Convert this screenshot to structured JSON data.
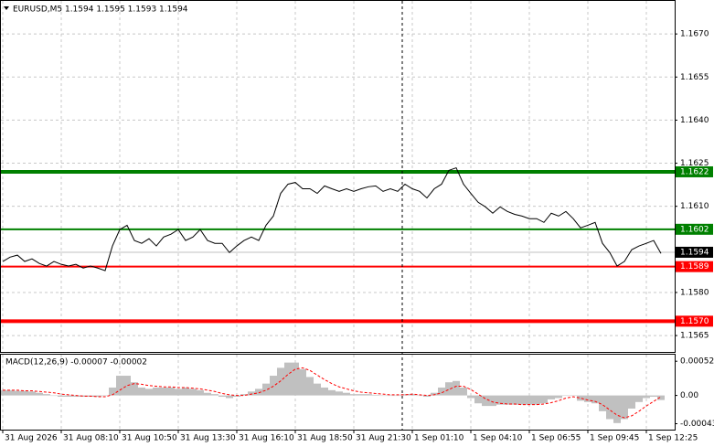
{
  "chart_data": [
    {
      "type": "line",
      "title": "EURUSD,M5  1.1594 1.1595 1.1593 1.1594",
      "categories": [
        "31 Aug 2026",
        null,
        null,
        null,
        null,
        null,
        null,
        null,
        "31 Aug 08:10",
        null,
        null,
        null,
        null,
        null,
        null,
        null,
        "31 Aug 10:50",
        null,
        null,
        null,
        null,
        null,
        null,
        null,
        "31 Aug 13:30",
        null,
        null,
        null,
        null,
        null,
        null,
        null,
        "31 Aug 16:10",
        null,
        null,
        null,
        null,
        null,
        null,
        null,
        "31 Aug 18:50",
        null,
        null,
        null,
        null,
        null,
        null,
        null,
        "31 Aug 21:30",
        null,
        null,
        null,
        null,
        null,
        null,
        null,
        "1 Sep 01:10",
        null,
        null,
        null,
        null,
        null,
        null,
        null,
        "1 Sep 04:10",
        null,
        null,
        null,
        null,
        null,
        null,
        null,
        "1 Sep 06:55",
        null,
        null,
        null,
        null,
        null,
        null,
        null,
        "1 Sep 09:45",
        null,
        null,
        null,
        null,
        null,
        null,
        null,
        "1 Sep 12:25",
        null,
        null
      ],
      "series": [
        {
          "color": "#000000",
          "values": [
            1.15908,
            1.15923,
            1.1593,
            1.15908,
            1.15917,
            1.15901,
            1.15892,
            1.15908,
            1.15898,
            1.15892,
            1.15898,
            1.15885,
            1.15892,
            1.15885,
            1.15876,
            1.15962,
            1.16019,
            1.16034,
            1.15981,
            1.15971,
            1.15987,
            1.15962,
            1.15993,
            1.16003,
            1.16019,
            1.15981,
            1.15993,
            1.16019,
            1.15981,
            1.15971,
            1.15971,
            1.15939,
            1.15962,
            1.15981,
            1.15993,
            1.15981,
            1.16034,
            1.16066,
            1.16145,
            1.16177,
            1.16183,
            1.16161,
            1.16161,
            1.16145,
            1.16171,
            1.16161,
            1.16152,
            1.16161,
            1.16152,
            1.16161,
            1.16168,
            1.16171,
            1.16152,
            1.16161,
            1.16152,
            1.16177,
            1.16161,
            1.16152,
            1.16129,
            1.16161,
            1.16177,
            1.16225,
            1.16234,
            1.16177,
            1.16145,
            1.16114,
            1.16098,
            1.16076,
            1.16098,
            1.16082,
            1.16072,
            1.16066,
            1.16057,
            1.16057,
            1.16044,
            1.16076,
            1.16066,
            1.16082,
            1.16057,
            1.16025,
            1.16034,
            1.16044,
            1.15971,
            1.15939,
            1.15892,
            1.15908,
            1.15949,
            1.15962,
            1.15971,
            1.15981,
            1.15936
          ]
        }
      ],
      "ylim": [
        1.15593,
        1.16815
      ],
      "yticks": [
        {
          "value": 1.167,
          "label": "1.1670"
        },
        {
          "value": 1.1655,
          "label": "1.1655"
        },
        {
          "value": 1.164,
          "label": "1.1640"
        },
        {
          "value": 1.1625,
          "label": "1.1625"
        },
        {
          "value": 1.161,
          "label": "1.1610"
        },
        {
          "value": 1.158,
          "label": "1.1580"
        },
        {
          "value": 1.1565,
          "label": "1.1565"
        }
      ],
      "grid": true,
      "levels": [
        {
          "value": 1.1622,
          "label": "1.1622",
          "color": "#008000",
          "width": 4
        },
        {
          "value": 1.1602,
          "label": "1.1602",
          "color": "#008000",
          "width": 2
        },
        {
          "value": 1.1589,
          "label": "1.1589",
          "color": "#ff0000",
          "width": 2
        },
        {
          "value": 1.157,
          "label": "1.1570",
          "color": "#ff0000",
          "width": 4
        }
      ],
      "last_price": {
        "value": 1.1594,
        "label": "1.1594",
        "color": "#c0c0c0"
      }
    },
    {
      "type": "macd",
      "title": "MACD(12,26,9) -0.00007 -0.00002",
      "series": [
        {
          "type": "bar",
          "color": "#c0c0c0",
          "values": [
            8e-05,
            8e-05,
            7e-05,
            7e-05,
            6e-05,
            4e-05,
            2e-05,
            0,
            -2e-05,
            -2e-05,
            -2e-05,
            -2e-05,
            -2e-05,
            -2e-05,
            0,
            0.00012,
            0.0003,
            0.0003,
            0.0002,
            0.00012,
            0.0001,
            0.00012,
            0.00012,
            0.00012,
            0.0001,
            0.00012,
            0.0001,
            8e-05,
            4e-05,
            2e-05,
            -2e-05,
            -4e-05,
            -2e-05,
            2e-05,
            6e-05,
            0.0001,
            0.00018,
            0.0003,
            0.00042,
            0.0005,
            0.0005,
            0.0004,
            0.00028,
            0.00018,
            0.00012,
            8e-05,
            6e-05,
            4e-05,
            2e-05,
            2e-05,
            2e-05,
            1e-05,
            0,
            0,
            0,
            2e-05,
            2e-05,
            0,
            -2e-05,
            4e-05,
            0.00012,
            0.0002,
            0.00022,
            0.00012,
            -4e-05,
            -0.00012,
            -0.00016,
            -0.00016,
            -0.00014,
            -0.00014,
            -0.00014,
            -0.00014,
            -0.00014,
            -0.00014,
            -0.00012,
            -6e-05,
            -4e-05,
            0,
            0,
            -8e-05,
            -0.0001,
            -0.00012,
            -0.00024,
            -0.00036,
            -0.00042,
            -0.00036,
            -0.0002,
            -0.0001,
            -4e-05,
            -2e-05,
            -7e-05
          ]
        },
        {
          "type": "line",
          "color": "#ff0000",
          "values": [
            8e-05,
            8e-05,
            8e-05,
            7e-05,
            7e-05,
            6e-05,
            5e-05,
            4e-05,
            2e-05,
            1e-05,
            0,
            -1e-05,
            -1e-05,
            -2e-05,
            -2e-05,
            1e-05,
            8e-05,
            0.00015,
            0.00018,
            0.00017,
            0.00015,
            0.00014,
            0.00013,
            0.00013,
            0.00012,
            0.00012,
            0.00011,
            0.0001,
            8e-05,
            6e-05,
            3e-05,
            1e-05,
            0,
            0,
            2e-05,
            4e-05,
            8e-05,
            0.00014,
            0.00022,
            0.00032,
            0.0004,
            0.00042,
            0.00038,
            0.00031,
            0.00024,
            0.00018,
            0.00013,
            0.0001,
            7e-05,
            5e-05,
            4e-05,
            3e-05,
            2e-05,
            1e-05,
            1e-05,
            1e-05,
            2e-05,
            1e-05,
            0,
            1e-05,
            4e-05,
            9e-05,
            0.00014,
            0.00014,
            9e-05,
            2e-05,
            -5e-05,
            -0.0001,
            -0.00012,
            -0.00013,
            -0.00013,
            -0.00014,
            -0.00014,
            -0.00014,
            -0.00013,
            -0.00011,
            -8e-05,
            -4e-05,
            -2e-05,
            -4e-05,
            -7e-05,
            -9e-05,
            -0.00014,
            -0.00022,
            -0.0003,
            -0.00034,
            -0.00031,
            -0.00024,
            -0.00016,
            -9e-05,
            -2e-05
          ]
        }
      ],
      "ylim": [
        -0.00052,
        0.00062
      ],
      "yticks": [
        {
          "value": 0.00052,
          "label": "0.00052"
        },
        {
          "value": 0,
          "label": "0.00"
        },
        {
          "value": -0.00043,
          "label": "-0.00043"
        }
      ]
    }
  ]
}
